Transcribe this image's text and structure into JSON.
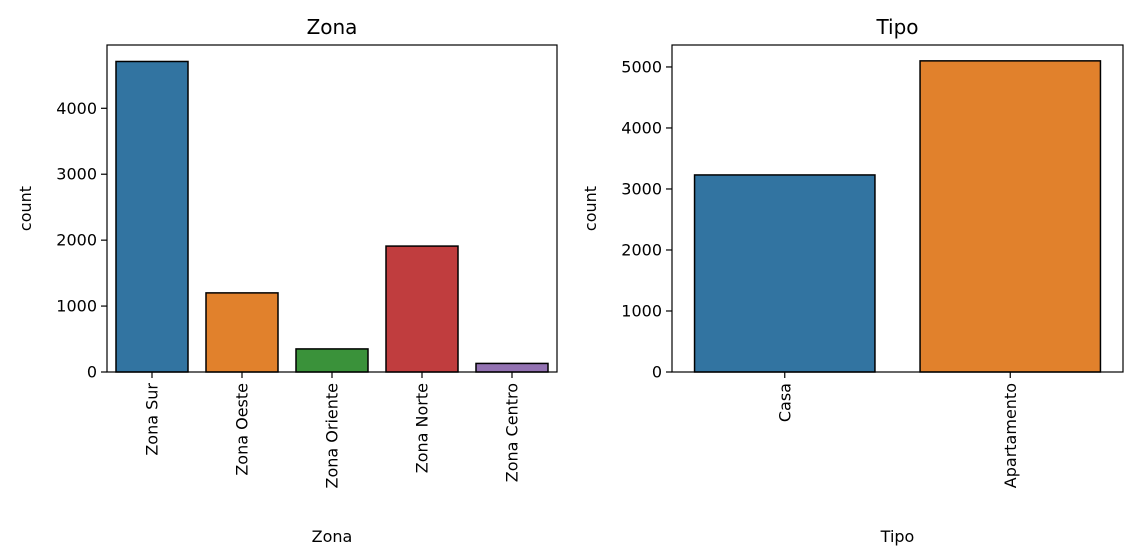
{
  "chart_data": [
    {
      "type": "bar",
      "title": "Zona",
      "xlabel": "Zona",
      "ylabel": "count",
      "categories": [
        "Zona Sur",
        "Zona Oeste",
        "Zona Oriente",
        "Zona Norte",
        "Zona Centro"
      ],
      "values": [
        4710,
        1200,
        350,
        1910,
        130
      ],
      "colors": [
        "#3274a1",
        "#e1812c",
        "#3a923a",
        "#c03d3e",
        "#9372b2"
      ],
      "ylim": [
        0,
        4960
      ],
      "yticks": [
        0,
        1000,
        2000,
        3000,
        4000
      ],
      "ytick_labels": [
        "0",
        "1000",
        "2000",
        "3000",
        "4000"
      ],
      "xtick_rotation": 90,
      "grid": false,
      "legend": false
    },
    {
      "type": "bar",
      "title": "Tipo",
      "xlabel": "Tipo",
      "ylabel": "count",
      "categories": [
        "Casa",
        "Apartamento"
      ],
      "values": [
        3230,
        5100
      ],
      "colors": [
        "#3274a1",
        "#e1812c"
      ],
      "ylim": [
        0,
        5360
      ],
      "yticks": [
        0,
        1000,
        2000,
        3000,
        4000,
        5000
      ],
      "ytick_labels": [
        "0",
        "1000",
        "2000",
        "3000",
        "4000",
        "5000"
      ],
      "xtick_rotation": 90,
      "grid": false,
      "legend": false
    }
  ]
}
